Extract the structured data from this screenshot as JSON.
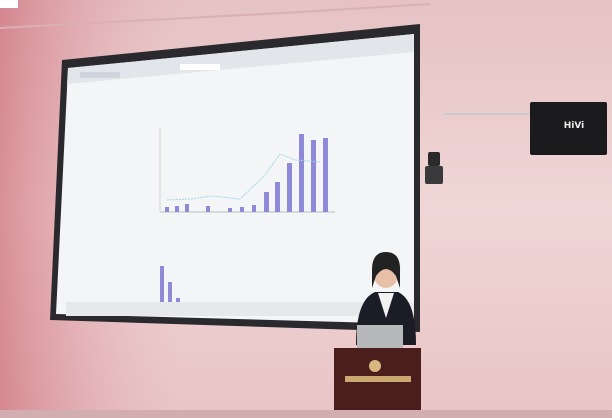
{
  "speaker_brand": "HiVi"
}
